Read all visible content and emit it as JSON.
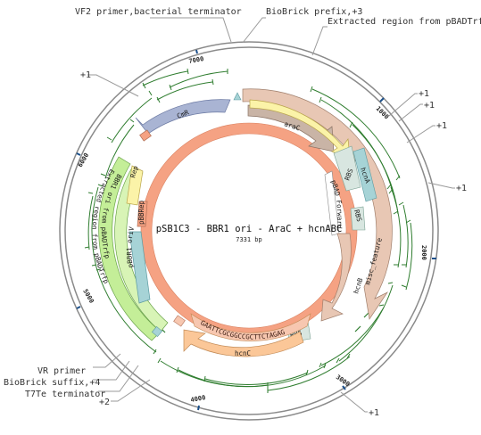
{
  "plasmid": {
    "name": "pSB1C3 - BBR1 ori - AraC + hcnABC",
    "length_label": "7331 bp",
    "length_bp": 7331
  },
  "colors": {
    "backbone": "#f5a283",
    "backbone_edge": "#d9805f",
    "outer_ring": "#8a8a8a",
    "primer": "#2f7d2f",
    "cmr": "#a9b4d3",
    "arac": "#c9b4a6",
    "promoter": "#fbf3a8",
    "rbs": "#d8e6e0",
    "hcn_gene": "#e8c7b4",
    "terminator": "#a6d3d6",
    "extracted_region": "#c4ee98",
    "hcnc": "#fbc798",
    "seq": "#f7c7b0"
  },
  "tick_marks": [
    {
      "bp": 1000,
      "label": "1000"
    },
    {
      "bp": 2000,
      "label": "2000"
    },
    {
      "bp": 3000,
      "label": "3000"
    },
    {
      "bp": 4000,
      "label": "4000"
    },
    {
      "bp": 5000,
      "label": "5000"
    },
    {
      "bp": 6000,
      "label": "6000"
    },
    {
      "bp": 7000,
      "label": "7000"
    }
  ],
  "callouts": [
    {
      "name": "callout-vf2-primer",
      "text": "VF2 primer,bacterial terminator"
    },
    {
      "name": "callout-biobrick-prefix",
      "text": "BioBrick prefix,+3"
    },
    {
      "name": "callout-extracted-region",
      "text": "Extracted region from pBADTrfp"
    },
    {
      "name": "callout-vr-primer",
      "text": "VR primer"
    },
    {
      "name": "callout-biobrick-suffix",
      "text": "BioBrick suffix,+4"
    },
    {
      "name": "callout-t7te-terminator",
      "text": "T7Te terminator"
    }
  ],
  "plus_labels": [
    {
      "name": "plus-label-top-left",
      "text": "+1"
    },
    {
      "name": "plus-label-right-1",
      "text": "+1"
    },
    {
      "name": "plus-label-right-2",
      "text": "+1"
    },
    {
      "name": "plus-label-right-3",
      "text": "+1"
    },
    {
      "name": "plus-label-right-4",
      "text": "+1"
    },
    {
      "name": "plus-label-bottom-right",
      "text": "+1"
    },
    {
      "name": "plus-label-bottom-left",
      "text": "+2"
    }
  ],
  "features": {
    "cmr": "CmR",
    "arac": "araC",
    "pbad_forward": "pBAD Forward",
    "rbs_1": "RBS",
    "rbs_2": "RBS",
    "rbs_3": "RBS",
    "hcna": "hcnA",
    "hcnb": "hcnB",
    "misc_feature": "misc_feature",
    "hcnc": "hcnC",
    "rep": "Rep",
    "pbbr1_orii": "pBBR1 oriV",
    "pbbrep": "pBBRep",
    "extracted_region_1": "Extracted region from pBADTrfp",
    "extracted_region_2": "BBR1 ori from pBADTrfp",
    "sequence": "GAATTCGCGGCCGCTTCTAGAG"
  }
}
